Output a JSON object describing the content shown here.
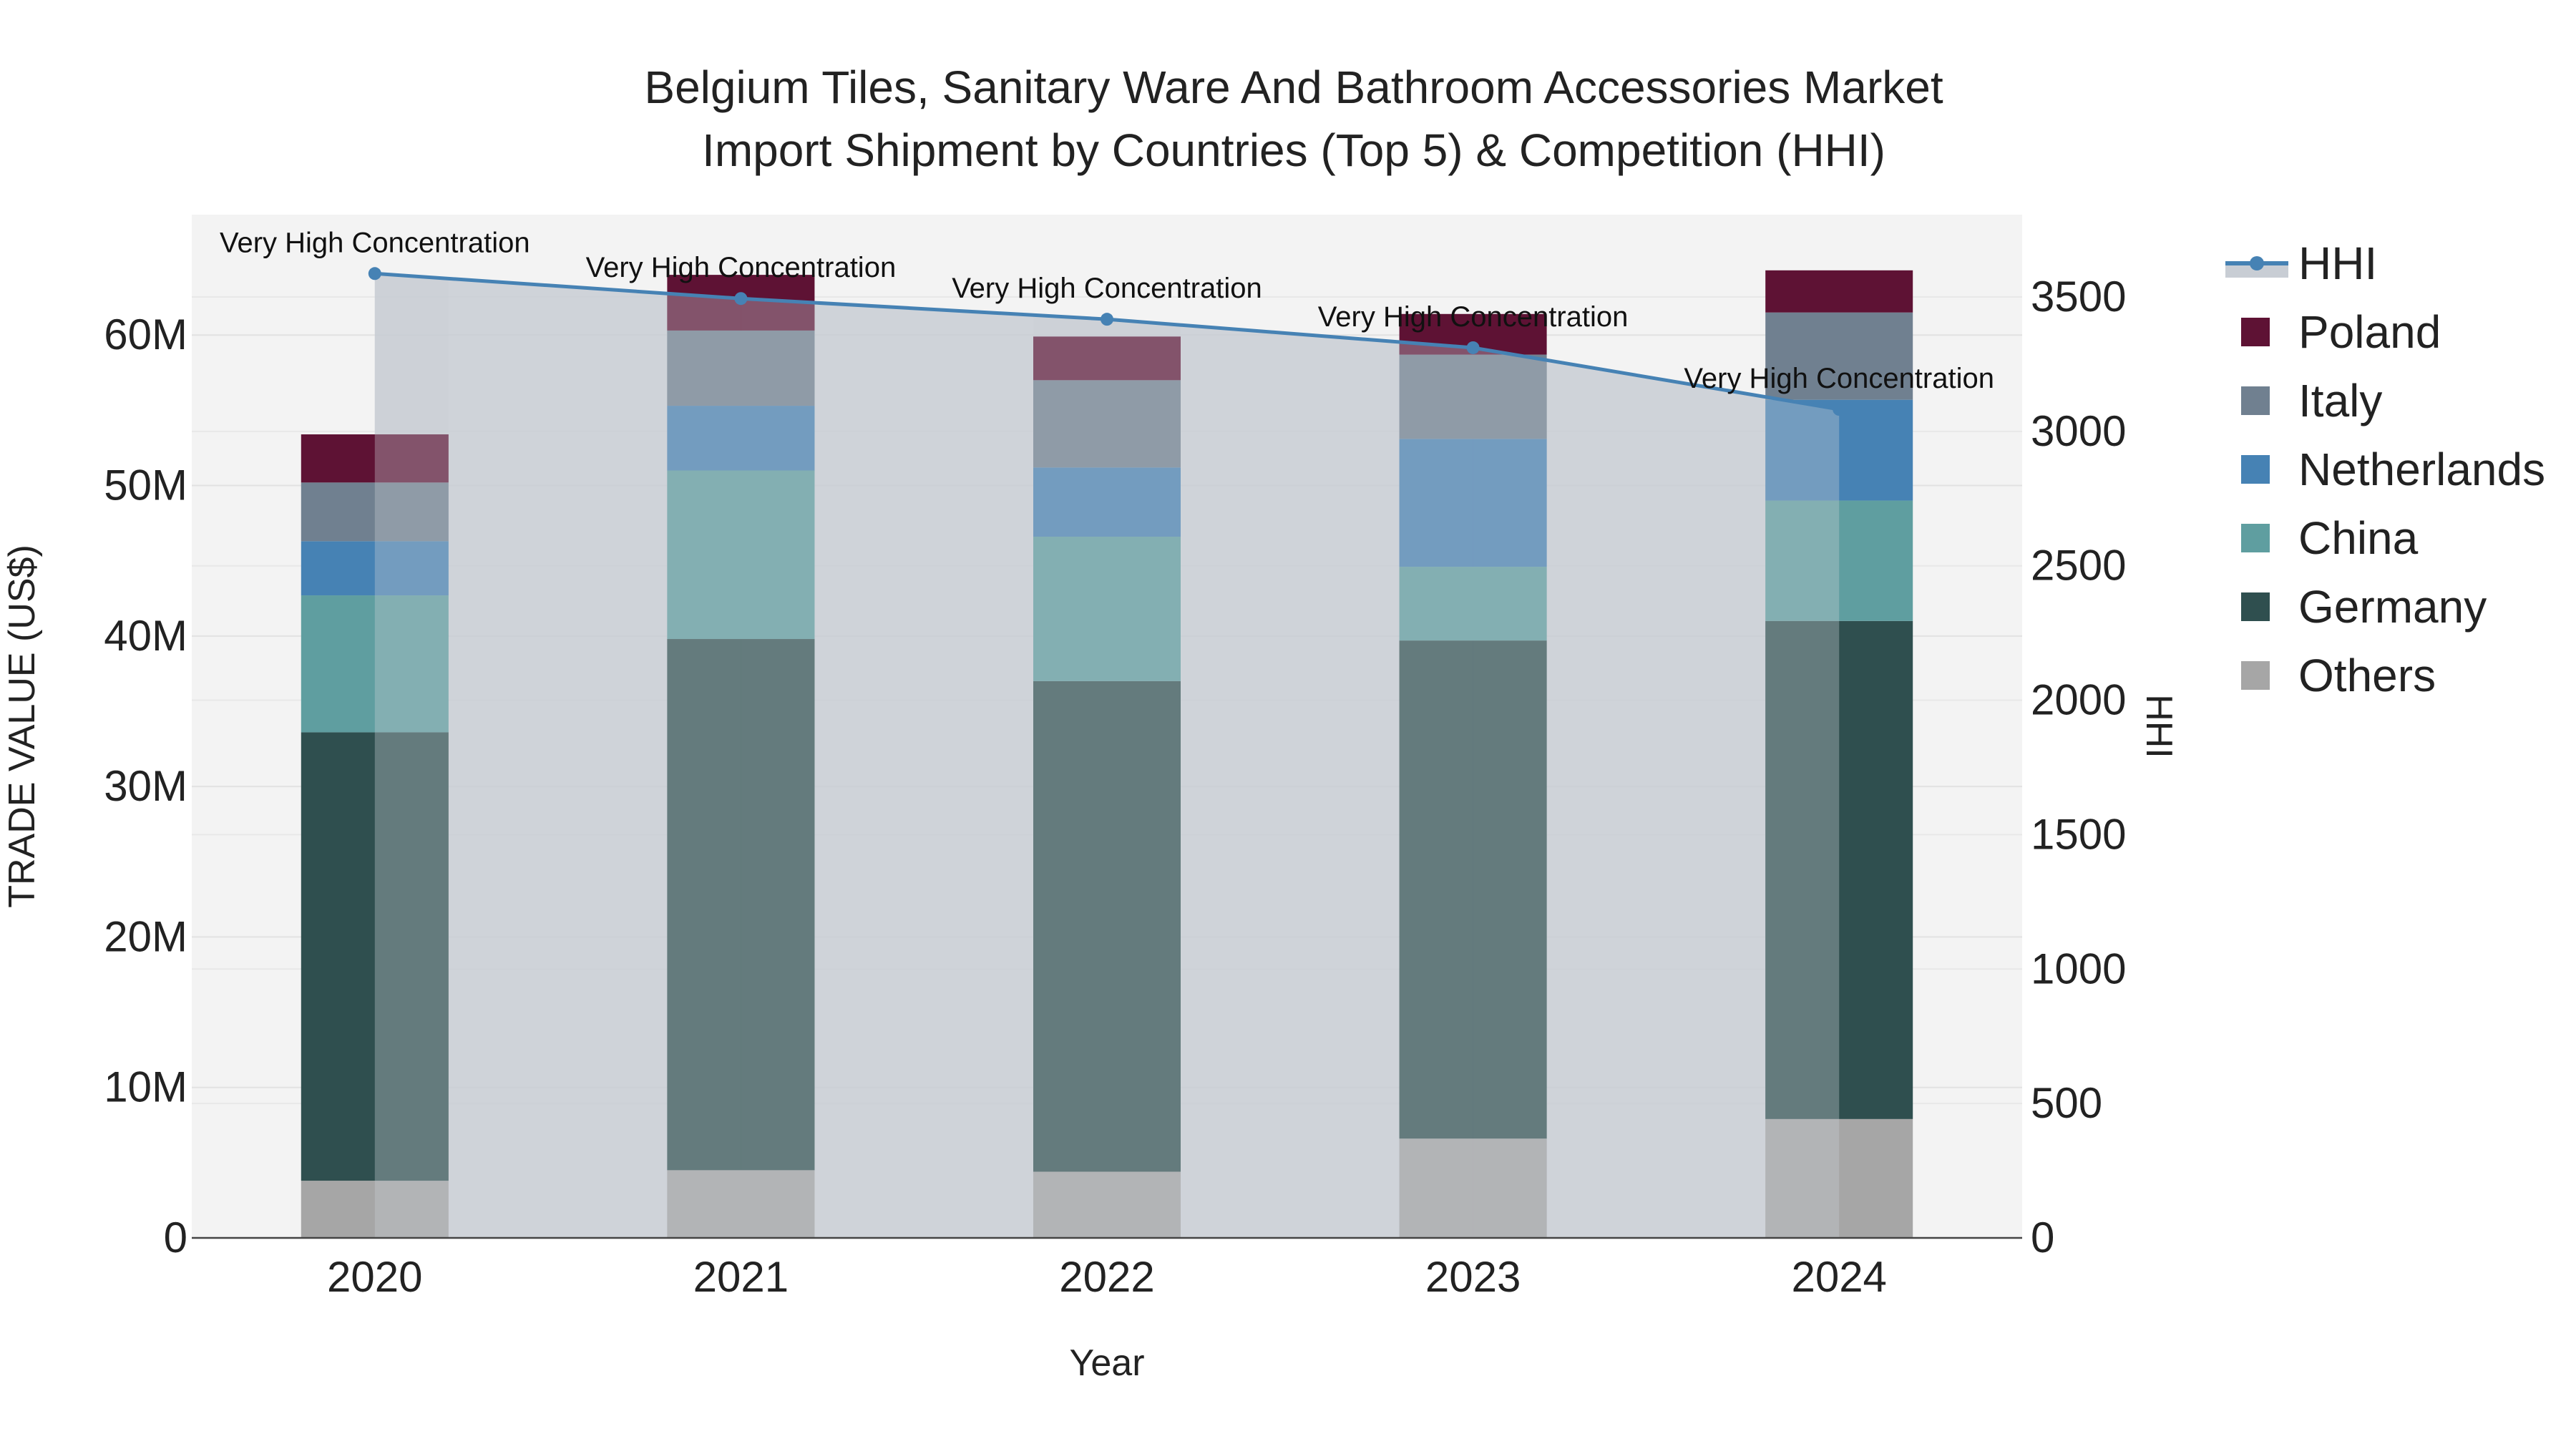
{
  "chart_data": {
    "type": "bar",
    "title_lines": [
      "Belgium Tiles, Sanitary Ware And Bathroom Accessories Market",
      "Import Shipment by Countries (Top 5) & Competition (HHI)"
    ],
    "xlabel": "Year",
    "ylabel": "TRADE VALUE (US$)",
    "y2label": "HHI",
    "categories": [
      "2020",
      "2021",
      "2022",
      "2023",
      "2024"
    ],
    "ylim": [
      0,
      68000000
    ],
    "y_ticks": [
      0,
      10000000,
      20000000,
      30000000,
      40000000,
      50000000,
      60000000
    ],
    "y_tick_labels": [
      "0",
      "10M",
      "20M",
      "30M",
      "40M",
      "50M",
      "60M"
    ],
    "y2lim": [
      0,
      3806
    ],
    "y2_ticks": [
      0,
      500,
      1000,
      1500,
      2000,
      2500,
      3000,
      3500
    ],
    "y2_tick_labels": [
      "0",
      "500",
      "1000",
      "1500",
      "2000",
      "2500",
      "3000",
      "3500"
    ],
    "series": [
      {
        "name": "Others",
        "color": "#a6a6a6",
        "values": [
          3800000,
          4500000,
          4400000,
          6600000,
          7900000
        ]
      },
      {
        "name": "Germany",
        "color": "#2f4f4f",
        "values": [
          29800000,
          35300000,
          32600000,
          33100000,
          33100000
        ]
      },
      {
        "name": "China",
        "color": "#5f9ea0",
        "values": [
          9100000,
          11200000,
          9600000,
          4900000,
          8000000
        ]
      },
      {
        "name": "Netherlands",
        "color": "#4682b4",
        "values": [
          3600000,
          4300000,
          4600000,
          8500000,
          6700000
        ]
      },
      {
        "name": "Italy",
        "color": "#708090",
        "values": [
          3900000,
          5000000,
          5800000,
          5600000,
          5800000
        ]
      },
      {
        "name": "Poland",
        "color": "#5e1234",
        "values": [
          3200000,
          3700000,
          2900000,
          2700000,
          2800000
        ]
      }
    ],
    "hhi": {
      "name": "HHI",
      "color": "#4682b4",
      "fill_color": "#c8cdd4",
      "values": [
        3587,
        3494,
        3417,
        3311,
        3082
      ],
      "annotations": [
        "Very High Concentration",
        "Very High Concentration",
        "Very High Concentration",
        "Very High Concentration",
        "Very High Concentration"
      ]
    },
    "legend": [
      "HHI",
      "Poland",
      "Italy",
      "Netherlands",
      "China",
      "Germany",
      "Others"
    ],
    "legend_position": "right"
  }
}
